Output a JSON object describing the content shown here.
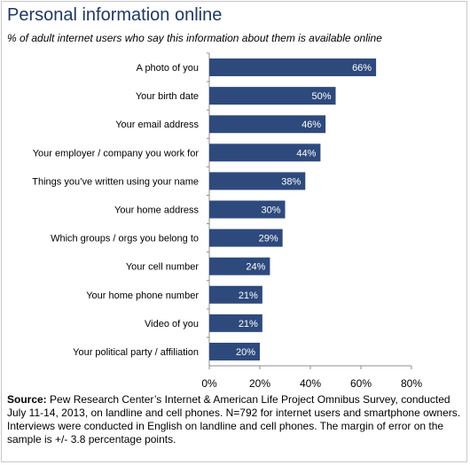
{
  "header": {
    "title": "Personal information online",
    "subtitle": "% of adult internet users who say this information about them is available online"
  },
  "source": {
    "label": "Source:",
    "text": " Pew Research Center’s Internet & American Life Project Omnibus Survey, conducted July 11-14, 2013, on landline and cell phones. N=792 for internet users and smartphone owners. Interviews were conducted in English on landline and cell phones. The margin of error on the sample is +/- 3.8 percentage points."
  },
  "chart_data": {
    "type": "bar",
    "orientation": "horizontal",
    "categories": [
      "A photo of you",
      "Your birth date",
      "Your email address",
      "Your employer / company you work for",
      "Things you’ve written using your name",
      "Your home address",
      "Which groups / orgs you belong to",
      "Your cell number",
      "Your home phone number",
      "Video of you",
      "Your political party / affiliation"
    ],
    "values": [
      66,
      50,
      46,
      44,
      38,
      30,
      29,
      24,
      21,
      21,
      20
    ],
    "value_labels": [
      "66%",
      "50%",
      "46%",
      "44%",
      "38%",
      "30%",
      "29%",
      "24%",
      "21%",
      "21%",
      "20%"
    ],
    "xlim": [
      0,
      80
    ],
    "x_ticks": [
      "0%",
      "20%",
      "40%",
      "60%",
      "80%"
    ],
    "bar_color": "#2e4a7d",
    "grid": false
  }
}
